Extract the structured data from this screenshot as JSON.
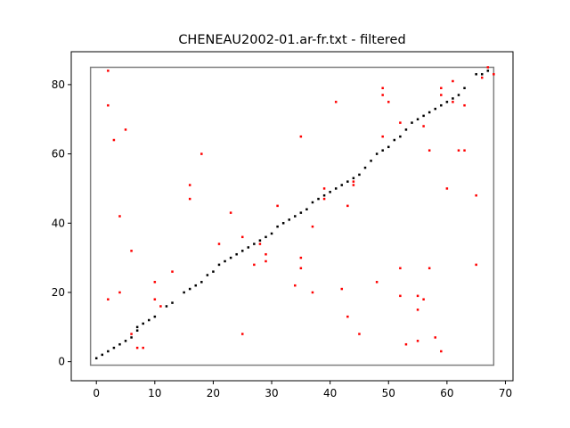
{
  "chart_data": {
    "type": "scatter",
    "title": "CHENEAU2002-01.ar-fr.txt - filtered",
    "xlabel": "",
    "ylabel": "",
    "xlim": [
      -4.3,
      71.3
    ],
    "ylim": [
      -5.5,
      89.5
    ],
    "xticks": [
      0,
      10,
      20,
      30,
      40,
      50,
      60,
      70
    ],
    "yticks": [
      0,
      20,
      40,
      60,
      80
    ],
    "grid": false,
    "colors": {
      "alignment": "#000000",
      "filtered": "#ff0000",
      "box": "#808080"
    },
    "bounding_box": {
      "x": [
        -1,
        68
      ],
      "y": [
        -1,
        85
      ]
    },
    "series": [
      {
        "color": "#000000",
        "points": [
          [
            0,
            1
          ],
          [
            1,
            2
          ],
          [
            2,
            3
          ],
          [
            3,
            4
          ],
          [
            4,
            5
          ],
          [
            5,
            6
          ],
          [
            6,
            7
          ],
          [
            7,
            9
          ],
          [
            7,
            10
          ],
          [
            8,
            11
          ],
          [
            9,
            12
          ],
          [
            10,
            13
          ],
          [
            12,
            16
          ],
          [
            13,
            17
          ],
          [
            15,
            20
          ],
          [
            16,
            21
          ],
          [
            17,
            22
          ],
          [
            18,
            23
          ],
          [
            19,
            25
          ],
          [
            20,
            26
          ],
          [
            21,
            28
          ],
          [
            22,
            29
          ],
          [
            23,
            30
          ],
          [
            24,
            31
          ],
          [
            25,
            32
          ],
          [
            26,
            33
          ],
          [
            27,
            34
          ],
          [
            28,
            35
          ],
          [
            29,
            36
          ],
          [
            30,
            37
          ],
          [
            31,
            39
          ],
          [
            32,
            40
          ],
          [
            33,
            41
          ],
          [
            34,
            42
          ],
          [
            35,
            43
          ],
          [
            36,
            44
          ],
          [
            37,
            46
          ],
          [
            38,
            47
          ],
          [
            39,
            48
          ],
          [
            40,
            49
          ],
          [
            41,
            50
          ],
          [
            42,
            51
          ],
          [
            43,
            52
          ],
          [
            44,
            53
          ],
          [
            45,
            54
          ],
          [
            46,
            56
          ],
          [
            47,
            58
          ],
          [
            48,
            60
          ],
          [
            49,
            61
          ],
          [
            50,
            62
          ],
          [
            51,
            64
          ],
          [
            52,
            65
          ],
          [
            53,
            67
          ],
          [
            54,
            69
          ],
          [
            55,
            70
          ],
          [
            56,
            71
          ],
          [
            57,
            72
          ],
          [
            58,
            73
          ],
          [
            59,
            74
          ],
          [
            60,
            75
          ],
          [
            61,
            76
          ],
          [
            62,
            77
          ],
          [
            63,
            79
          ],
          [
            65,
            83
          ],
          [
            66,
            83
          ],
          [
            67,
            84
          ]
        ]
      },
      {
        "color": "#ff0000",
        "points": [
          [
            2,
            84
          ],
          [
            2,
            74
          ],
          [
            2,
            18
          ],
          [
            3,
            64
          ],
          [
            4,
            42
          ],
          [
            4,
            20
          ],
          [
            5,
            67
          ],
          [
            6,
            32
          ],
          [
            6,
            8
          ],
          [
            7,
            4
          ],
          [
            8,
            4
          ],
          [
            10,
            23
          ],
          [
            10,
            18
          ],
          [
            11,
            16
          ],
          [
            13,
            26
          ],
          [
            16,
            51
          ],
          [
            16,
            47
          ],
          [
            18,
            60
          ],
          [
            21,
            34
          ],
          [
            23,
            43
          ],
          [
            25,
            36
          ],
          [
            25,
            8
          ],
          [
            27,
            28
          ],
          [
            28,
            34
          ],
          [
            29,
            29
          ],
          [
            29,
            31
          ],
          [
            31,
            45
          ],
          [
            34,
            22
          ],
          [
            35,
            65
          ],
          [
            35,
            30
          ],
          [
            35,
            27
          ],
          [
            37,
            39
          ],
          [
            37,
            20
          ],
          [
            39,
            50
          ],
          [
            39,
            47
          ],
          [
            41,
            75
          ],
          [
            42,
            21
          ],
          [
            43,
            45
          ],
          [
            43,
            13
          ],
          [
            44,
            52
          ],
          [
            44,
            51
          ],
          [
            45,
            8
          ],
          [
            48,
            23
          ],
          [
            49,
            79
          ],
          [
            49,
            77
          ],
          [
            49,
            65
          ],
          [
            50,
            75
          ],
          [
            52,
            69
          ],
          [
            52,
            27
          ],
          [
            52,
            19
          ],
          [
            53,
            5
          ],
          [
            55,
            19
          ],
          [
            55,
            15
          ],
          [
            55,
            6
          ],
          [
            56,
            18
          ],
          [
            56,
            68
          ],
          [
            57,
            61
          ],
          [
            57,
            27
          ],
          [
            58,
            7
          ],
          [
            59,
            79
          ],
          [
            59,
            77
          ],
          [
            59,
            3
          ],
          [
            60,
            50
          ],
          [
            61,
            81
          ],
          [
            61,
            75
          ],
          [
            62,
            61
          ],
          [
            63,
            61
          ],
          [
            63,
            74
          ],
          [
            65,
            48
          ],
          [
            65,
            28
          ],
          [
            66,
            82
          ],
          [
            67,
            85
          ],
          [
            68,
            83
          ]
        ]
      }
    ]
  }
}
